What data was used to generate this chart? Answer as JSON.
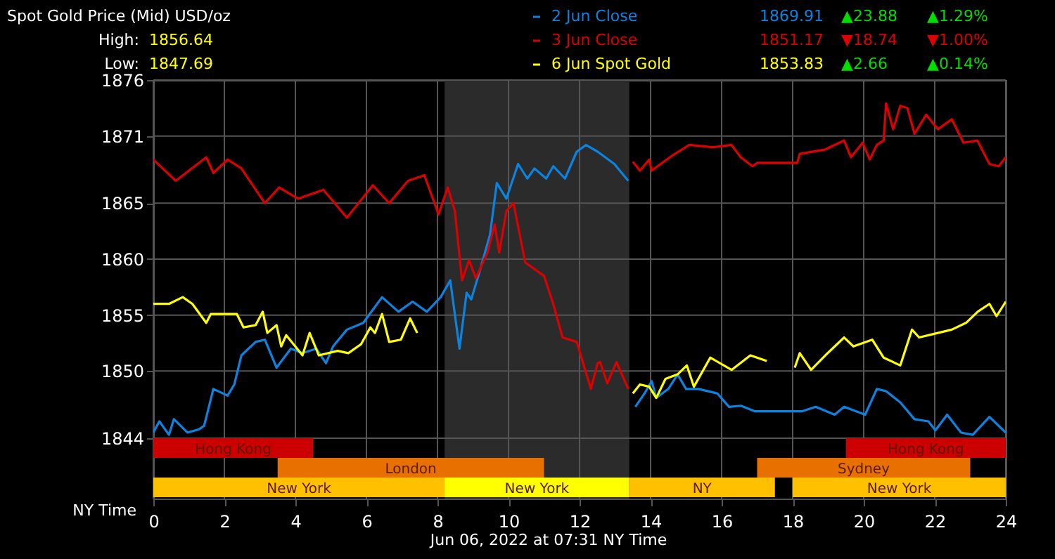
{
  "chart_data": {
    "type": "line",
    "title": "Spot Gold Price (Mid) USD/oz",
    "xlabel": "NY Time",
    "xlim": [
      0,
      24
    ],
    "xticks": [
      0,
      2,
      4,
      6,
      8,
      10,
      12,
      14,
      16,
      18,
      20,
      22,
      24
    ],
    "ylim": [
      1838.6,
      1876
    ],
    "yticks": [
      1844,
      1850,
      1855,
      1860,
      1865,
      1871,
      1876
    ],
    "grid": true,
    "legend": "top right",
    "line_style": "solid",
    "series": [
      {
        "name": "2 Jun Close",
        "color": "#0a84e0",
        "x": [
          0,
          0.17,
          0.44,
          0.58,
          0.96,
          1.29,
          1.43,
          1.69,
          2.09,
          2.28,
          2.48,
          2.88,
          3.14,
          3.47,
          3.87,
          4.2,
          4.59,
          4.86,
          5.06,
          5.45,
          5.91,
          6.44,
          6.9,
          7.3,
          7.7,
          8.09,
          8.36,
          8.62,
          8.82,
          8.95,
          9.15,
          9.48,
          9.67,
          9.94,
          10.27,
          10.53,
          10.73,
          11.06,
          11.26,
          11.59,
          11.92,
          12.18,
          12.51,
          12.98,
          13.37,
          13.47,
          13.57,
          13.83,
          14.03,
          14.16,
          14.5,
          14.76,
          15.0,
          15.35,
          15.88,
          16.21,
          16.54,
          16.94,
          18.26,
          18.65,
          19.18,
          19.45,
          20.04,
          20.37,
          20.63,
          21.03,
          21.43,
          21.82,
          22.02,
          22.35,
          22.74,
          23.07,
          23.54,
          24
        ],
        "values": [
          1844.5,
          1845.5,
          1844.3,
          1845.7,
          1844.5,
          1844.8,
          1845.1,
          1848.4,
          1847.8,
          1848.8,
          1851.4,
          1852.6,
          1852.8,
          1850.3,
          1852.0,
          1851.6,
          1852.0,
          1850.7,
          1852.2,
          1853.7,
          1854.3,
          1856.6,
          1855.3,
          1856.2,
          1855.3,
          1856.6,
          1858.1,
          1852.0,
          1857.0,
          1856.4,
          1858.5,
          1862.2,
          1866.8,
          1865.4,
          1868.5,
          1867.2,
          1868.1,
          1867.2,
          1868.3,
          1867.2,
          1869.6,
          1870.2,
          1869.6,
          1868.5,
          1867.0,
          null,
          1846.8,
          1848.0,
          1849.1,
          1847.6,
          1848.4,
          1849.7,
          1848.4,
          1848.4,
          1848.0,
          1846.8,
          1846.9,
          1846.4,
          1846.4,
          1846.8,
          1846.1,
          1846.8,
          1846.1,
          1848.4,
          1848.2,
          1847.2,
          1845.7,
          1845.5,
          1844.7,
          1846.1,
          1844.5,
          1844.3,
          1845.9,
          1844.5
        ]
      },
      {
        "name": "3 Jun Close",
        "color": "#dd0000",
        "x": [
          0,
          0.63,
          1.49,
          1.69,
          2.09,
          2.48,
          3.14,
          3.54,
          4.07,
          4.79,
          5.45,
          6.18,
          6.64,
          7.17,
          7.63,
          8.03,
          8.29,
          8.49,
          8.69,
          8.89,
          9.08,
          9.41,
          9.61,
          9.74,
          9.94,
          10.14,
          10.47,
          11.0,
          11.26,
          11.52,
          11.92,
          12.32,
          12.51,
          12.58,
          12.78,
          13.04,
          13.37,
          13.44,
          13.5,
          13.7,
          13.96,
          14.03,
          14.63,
          15.09,
          15.75,
          16.28,
          16.54,
          16.87,
          17.0,
          18.13,
          18.2,
          18.92,
          19.45,
          19.64,
          19.97,
          20.17,
          20.37,
          20.56,
          20.63,
          20.83,
          21.03,
          21.23,
          21.43,
          21.76,
          22.09,
          22.48,
          22.81,
          23.2,
          23.54,
          23.8,
          24.0
        ],
        "values": [
          1868.9,
          1867.0,
          1869.1,
          1867.7,
          1868.9,
          1868.1,
          1865.0,
          1866.4,
          1865.4,
          1866.2,
          1863.7,
          1866.6,
          1865.0,
          1867.0,
          1867.5,
          1864.0,
          1866.4,
          1864.3,
          1858.1,
          1859.9,
          1858.3,
          1860.6,
          1863.1,
          1860.6,
          1864.3,
          1865.0,
          1859.7,
          1858.5,
          1856.0,
          1853.0,
          1852.6,
          1848.4,
          1850.7,
          1850.8,
          1848.9,
          1850.8,
          1848.4,
          null,
          1868.7,
          1867.9,
          1868.9,
          1867.9,
          1869.3,
          1870.2,
          1870.0,
          1870.2,
          1869.1,
          1868.3,
          1868.6,
          1868.6,
          1869.4,
          1869.8,
          1870.6,
          1869.1,
          1870.4,
          1868.9,
          1870.2,
          1870.6,
          1873.9,
          1871.6,
          1873.7,
          1873.5,
          1871.2,
          1872.9,
          1871.6,
          1872.5,
          1870.4,
          1870.6,
          1868.5,
          1868.3,
          1869.1
        ]
      },
      {
        "name": "6 Jun Spot Gold",
        "color": "#ffff00",
        "x": [
          0,
          0.44,
          0.83,
          1.1,
          1.49,
          1.62,
          2.35,
          2.54,
          2.88,
          3.08,
          3.21,
          3.47,
          3.6,
          3.74,
          4.2,
          4.4,
          4.66,
          5.19,
          5.49,
          5.85,
          6.11,
          6.24,
          6.44,
          6.64,
          6.97,
          7.23,
          7.43,
          10.0,
          13.5,
          13.7,
          13.96,
          14.16,
          14.42,
          14.76,
          15.02,
          15.22,
          15.68,
          16.28,
          16.81,
          17.27,
          17.6,
          18.06,
          18.2,
          18.52,
          18.92,
          19.45,
          19.71,
          20.24,
          20.56,
          21.03,
          21.36,
          21.56,
          22.09,
          22.48,
          22.88,
          23.21,
          23.54,
          23.74,
          24.0
        ],
        "values": [
          1856.0,
          1856.0,
          1856.6,
          1856.0,
          1854.3,
          1855.1,
          1855.1,
          1853.9,
          1854.1,
          1855.3,
          1853.4,
          1854.1,
          1852.2,
          1853.2,
          1851.4,
          1853.4,
          1851.4,
          1851.8,
          1851.6,
          1852.4,
          1853.9,
          1853.4,
          1855.1,
          1852.6,
          1852.8,
          1854.7,
          1853.4,
          null,
          1848.0,
          1848.8,
          1848.6,
          1847.6,
          1849.3,
          1849.7,
          1850.5,
          1848.6,
          1851.2,
          1850.1,
          1851.4,
          1850.9,
          null,
          1850.3,
          1851.6,
          1850.1,
          1851.4,
          1853.0,
          1852.2,
          1852.8,
          1851.2,
          1850.5,
          1853.7,
          1853.0,
          1853.4,
          1853.7,
          1854.3,
          1855.3,
          1856.0,
          1854.9,
          1856.2
        ]
      }
    ],
    "bands": [
      {
        "axis": "x",
        "from": 8.2,
        "to": 13.4,
        "color": "#2b2b2b"
      },
      {
        "axis": "x",
        "from": 0,
        "to": 4.5,
        "label": "Hong Kong",
        "color": "#cc0000"
      },
      {
        "axis": "x",
        "from": 19.5,
        "to": 24,
        "label": "Hong Kong",
        "color": "#cc0000"
      },
      {
        "axis": "x",
        "from": 3.5,
        "to": 11,
        "label": "London",
        "color": "#e87000"
      },
      {
        "axis": "x",
        "from": 17,
        "to": 23,
        "label": "Sydney",
        "color": "#e87000"
      },
      {
        "axis": "x",
        "from": 0,
        "to": 8.2,
        "label": "New York",
        "color": "#ffc000"
      },
      {
        "axis": "x",
        "from": 8.2,
        "to": 13.4,
        "label": "New York",
        "color": "#ffff00"
      },
      {
        "axis": "x",
        "from": 13.4,
        "to": 17.5,
        "label": "NY",
        "color": "#ffc000"
      },
      {
        "axis": "x",
        "from": 18,
        "to": 24,
        "label": "New York",
        "color": "#ffc000"
      }
    ],
    "annotations": [
      "High:",
      "1856.64",
      "Low:",
      "1847.69",
      "1869.91",
      "▲23.88",
      "▲1.29%",
      "1851.17",
      "▼18.74",
      "▼1.00%",
      "1853.83",
      "▲2.66",
      "▲0.14%",
      "Jun 06, 2022 at 07:31 NY Time"
    ]
  }
}
